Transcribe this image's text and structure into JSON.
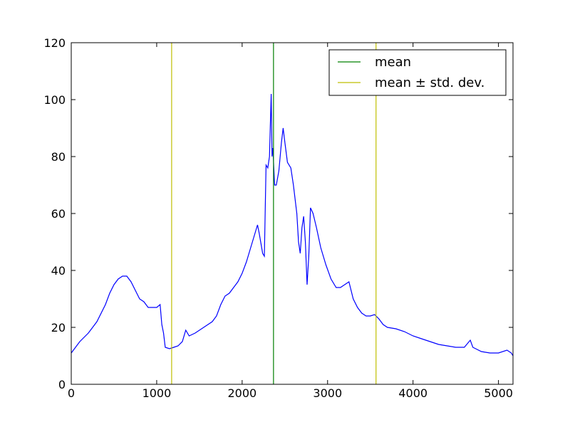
{
  "chart_data": {
    "type": "line",
    "x": [
      0,
      50,
      100,
      200,
      300,
      400,
      450,
      500,
      550,
      600,
      650,
      700,
      750,
      800,
      850,
      900,
      1000,
      1040,
      1060,
      1080,
      1100,
      1150,
      1200,
      1250,
      1300,
      1340,
      1380,
      1450,
      1550,
      1650,
      1700,
      1750,
      1800,
      1850,
      1900,
      1950,
      2000,
      2050,
      2100,
      2150,
      2180,
      2200,
      2240,
      2260,
      2280,
      2300,
      2320,
      2340,
      2350,
      2360,
      2380,
      2400,
      2430,
      2460,
      2480,
      2500,
      2530,
      2570,
      2600,
      2640,
      2660,
      2680,
      2700,
      2720,
      2740,
      2760,
      2780,
      2800,
      2830,
      2870,
      2920,
      2980,
      3040,
      3100,
      3150,
      3200,
      3250,
      3300,
      3350,
      3400,
      3450,
      3500,
      3550,
      3600,
      3650,
      3700,
      3800,
      3900,
      4000,
      4100,
      4200,
      4300,
      4400,
      4500,
      4600,
      4670,
      4700,
      4800,
      4900,
      5000,
      5100,
      5150,
      5170
    ],
    "series": [
      {
        "color": "#0000ff",
        "values": [
          11,
          13,
          15,
          18,
          22,
          28,
          32,
          35,
          37,
          38,
          38,
          36,
          33,
          30,
          29,
          27,
          27,
          28,
          21,
          18,
          13,
          12.5,
          13,
          13.5,
          15,
          19,
          17,
          18,
          20,
          22,
          24,
          28,
          31,
          32,
          34,
          36,
          39,
          43,
          48,
          53,
          56,
          53,
          46,
          45,
          77,
          76,
          80,
          102,
          80,
          83,
          70,
          70,
          75,
          85,
          90,
          85,
          78,
          76,
          70,
          60,
          50,
          46,
          55,
          59,
          50,
          35,
          45,
          62,
          60,
          55,
          48,
          42,
          37,
          34,
          34,
          35,
          36,
          30,
          27,
          25,
          24,
          24,
          24.5,
          23,
          21,
          20,
          19.5,
          18.5,
          17,
          16,
          15,
          14,
          13.5,
          13,
          13,
          15.5,
          13,
          11.5,
          11,
          11,
          12,
          11,
          10
        ]
      }
    ],
    "vlines": [
      {
        "name": "mean",
        "color": "#008000",
        "x": [
          2367
        ]
      },
      {
        "name": "mean ± std. dev.",
        "color": "#bfbf00",
        "x": [
          1175,
          3567
        ]
      }
    ],
    "xlim": [
      0,
      5170
    ],
    "ylim": [
      0,
      120
    ],
    "xticks": [
      0,
      1000,
      2000,
      3000,
      4000,
      5000
    ],
    "yticks": [
      0,
      20,
      40,
      60,
      80,
      100,
      120
    ],
    "legend": "upper right"
  }
}
